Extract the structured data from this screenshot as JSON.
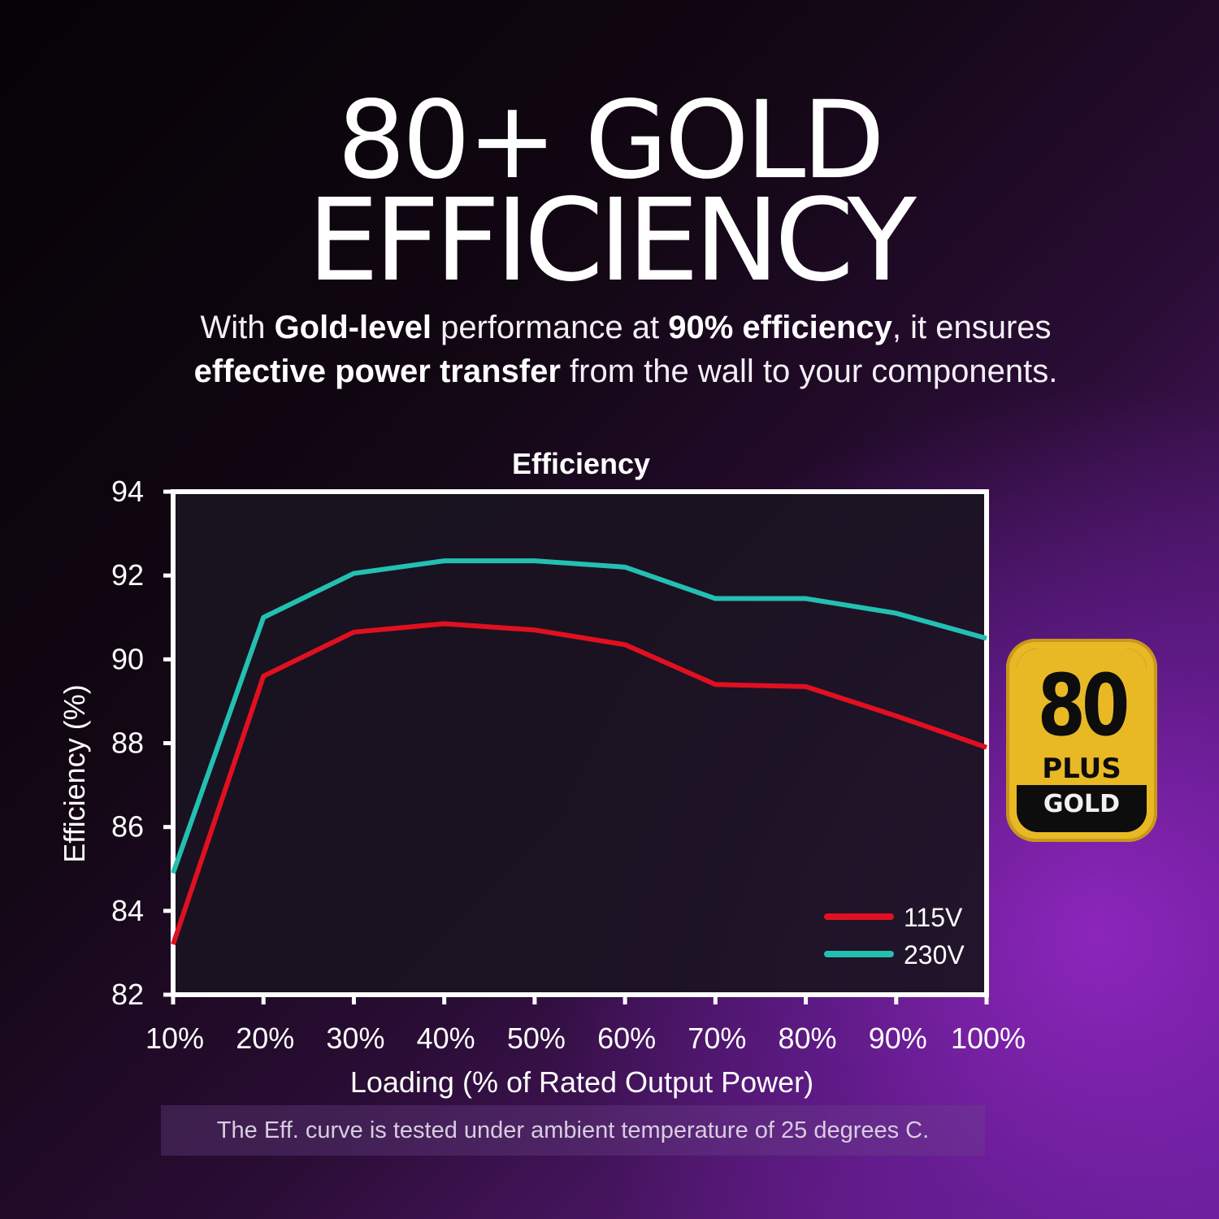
{
  "headline": {
    "line1": "80+ GOLD",
    "line2": "EFFICIENCY"
  },
  "subtitle": {
    "parts": [
      {
        "text": "With ",
        "bold": false
      },
      {
        "text": "Gold-level",
        "bold": true
      },
      {
        "text": " performance at ",
        "bold": false
      },
      {
        "text": "90% efficiency",
        "bold": true
      },
      {
        "text": ", it ensures ",
        "bold": false
      },
      {
        "text": "effective power transfer",
        "bold": true
      },
      {
        "text": " from the wall to your components.",
        "bold": false
      }
    ]
  },
  "badge": {
    "number": "80",
    "plus": "PLUS",
    "level": "GOLD"
  },
  "footnote": "The Eff. curve is tested under ambient temperature of 25 degrees C.",
  "colors": {
    "series_115v": "#e01020",
    "series_230v": "#23c0b2",
    "badge_gold": "#e8b925"
  },
  "chart_data": {
    "type": "line",
    "title": "Efficiency",
    "xlabel": "Loading (% of Rated Output Power)",
    "ylabel": "Efficiency (%)",
    "categories": [
      "10%",
      "20%",
      "30%",
      "40%",
      "50%",
      "60%",
      "70%",
      "80%",
      "90%",
      "100%"
    ],
    "x": [
      10,
      20,
      30,
      40,
      50,
      60,
      70,
      80,
      90,
      100
    ],
    "ylim": [
      82,
      94
    ],
    "yticks": [
      82,
      84,
      86,
      88,
      90,
      92,
      94
    ],
    "grid": false,
    "legend_position": "bottom-right",
    "series": [
      {
        "name": "115V",
        "color": "#e01020",
        "values": [
          83.2,
          89.6,
          90.65,
          90.85,
          90.7,
          90.35,
          89.4,
          89.35,
          88.65,
          87.9
        ]
      },
      {
        "name": "230V",
        "color": "#23c0b2",
        "values": [
          84.9,
          91.0,
          92.05,
          92.35,
          92.35,
          92.2,
          91.45,
          91.45,
          91.1,
          90.5
        ]
      }
    ]
  }
}
